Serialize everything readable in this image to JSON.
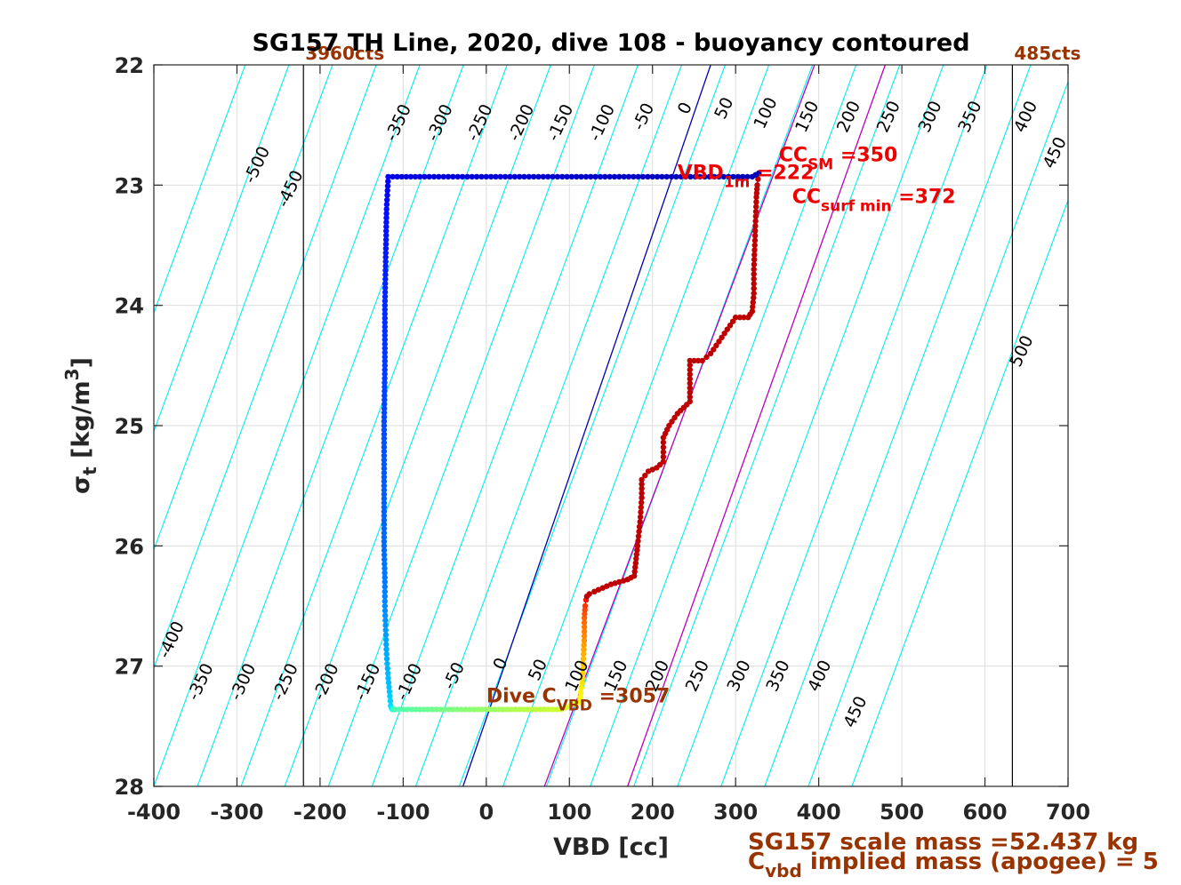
{
  "chart_data": {
    "type": "scatter",
    "title": "SG157 TH Line, 2020, dive 108 - buoyancy contoured",
    "xlabel": "VBD [cc]",
    "ylabel_main": "σ",
    "ylabel_sub": "t",
    "ylabel_unit": "[kg/m",
    "ylabel_sup": "3",
    "ylabel_close": "]",
    "xlim": [
      -400,
      700
    ],
    "ylim": [
      22,
      28
    ],
    "y_reversed": true,
    "grid": true,
    "xticks": [
      -400,
      -300,
      -200,
      -100,
      0,
      100,
      200,
      300,
      400,
      500,
      600,
      700
    ],
    "yticks": [
      22,
      23,
      24,
      25,
      26,
      27,
      28
    ],
    "buoyancy_contours": {
      "color": "#00eeee",
      "values": [
        -500,
        -450,
        -400,
        -350,
        -300,
        -250,
        -200,
        -150,
        -100,
        -50,
        0,
        50,
        100,
        150,
        200,
        250,
        300,
        350,
        400,
        450,
        500
      ],
      "top_labels": [
        {
          "text": "-500",
          "x": -270,
          "y": 22.85
        },
        {
          "text": "-450",
          "x": -230,
          "y": 23.05
        },
        {
          "text": "-350",
          "x": -100,
          "y": 22.5
        },
        {
          "text": "-300",
          "x": -50,
          "y": 22.5
        },
        {
          "text": "-250",
          "x": -2,
          "y": 22.5
        },
        {
          "text": "-200",
          "x": 48,
          "y": 22.5
        },
        {
          "text": "-150",
          "x": 95,
          "y": 22.5
        },
        {
          "text": "-100",
          "x": 145,
          "y": 22.5
        },
        {
          "text": "-50",
          "x": 195,
          "y": 22.45
        },
        {
          "text": "0",
          "x": 245,
          "y": 22.38
        },
        {
          "text": "50",
          "x": 292,
          "y": 22.38
        },
        {
          "text": "100",
          "x": 342,
          "y": 22.42
        },
        {
          "text": "150",
          "x": 392,
          "y": 22.45
        },
        {
          "text": "200",
          "x": 442,
          "y": 22.45
        },
        {
          "text": "250",
          "x": 490,
          "y": 22.45
        },
        {
          "text": "300",
          "x": 540,
          "y": 22.45
        },
        {
          "text": "350",
          "x": 588,
          "y": 22.45
        },
        {
          "text": "400",
          "x": 655,
          "y": 22.45
        },
        {
          "text": "450",
          "x": 690,
          "y": 22.75
        },
        {
          "text": "500",
          "x": 650,
          "y": 24.4
        }
      ],
      "bottom_labels": [
        {
          "text": "-400",
          "x": -373,
          "y": 26.8
        },
        {
          "text": "-350",
          "x": -338,
          "y": 27.15
        },
        {
          "text": "-300",
          "x": -287,
          "y": 27.15
        },
        {
          "text": "-250",
          "x": -236,
          "y": 27.15
        },
        {
          "text": "-200",
          "x": -187,
          "y": 27.15
        },
        {
          "text": "-150",
          "x": -137,
          "y": 27.15
        },
        {
          "text": "-100",
          "x": -87,
          "y": 27.15
        },
        {
          "text": "-50",
          "x": -33,
          "y": 27.1
        },
        {
          "text": "0",
          "x": 23,
          "y": 27.0
        },
        {
          "text": "50",
          "x": 68,
          "y": 27.05
        },
        {
          "text": "100",
          "x": 115,
          "y": 27.1
        },
        {
          "text": "150",
          "x": 162,
          "y": 27.1
        },
        {
          "text": "200",
          "x": 212,
          "y": 27.1
        },
        {
          "text": "250",
          "x": 260,
          "y": 27.1
        },
        {
          "text": "300",
          "x": 310,
          "y": 27.1
        },
        {
          "text": "350",
          "x": 357,
          "y": 27.1
        },
        {
          "text": "400",
          "x": 407,
          "y": 27.1
        },
        {
          "text": "450",
          "x": 450,
          "y": 27.4
        }
      ]
    },
    "vertical_lines": [
      {
        "x": -220,
        "label": "3960cts",
        "color": "#000000"
      },
      {
        "x": 633,
        "label": "485cts",
        "color": "#000000"
      }
    ],
    "reference_lines": [
      {
        "name": "",
        "color": "#0000aa",
        "x_top": 270,
        "x_bottom": -28
      },
      {
        "name": "",
        "color": "#bb00bb",
        "x_top": 395,
        "x_bottom": 70
      },
      {
        "name": "",
        "color": "#bb00bb",
        "x_top": 480,
        "x_bottom": 170
      }
    ],
    "series": [
      {
        "color_note": "jet colormap by time",
        "x": [
          -118,
          -120,
          -121,
          -122,
          -122,
          -123,
          -123,
          -123,
          -122,
          -122,
          -121,
          -120,
          -118,
          -116,
          -115,
          -114,
          -113,
          -112,
          -112,
          -111,
          -111,
          -110,
          -90,
          -60,
          -30,
          0,
          30,
          60,
          90,
          112,
          116,
          117,
          118,
          118,
          119,
          120,
          121,
          124,
          130,
          140,
          150,
          160,
          170,
          178,
          182,
          185,
          187,
          187,
          195,
          205,
          213,
          213,
          220,
          230,
          245,
          245,
          260,
          270,
          280,
          290,
          300,
          315,
          320,
          322,
          322,
          323,
          324,
          325,
          326,
          327,
          328,
          320,
          280,
          240,
          200,
          160,
          120,
          80,
          40,
          0,
          -40,
          -80,
          -118
        ],
        "y": [
          22.93,
          23.2,
          23.6,
          24.0,
          24.5,
          25.0,
          25.5,
          26.0,
          26.3,
          26.5,
          26.7,
          26.9,
          27.1,
          27.25,
          27.33,
          27.35,
          27.36,
          27.36,
          27.36,
          27.36,
          27.36,
          27.36,
          27.36,
          27.36,
          27.36,
          27.36,
          27.36,
          27.36,
          27.36,
          27.3,
          27.1,
          26.9,
          26.75,
          26.6,
          26.5,
          26.45,
          26.42,
          26.4,
          26.38,
          26.35,
          26.32,
          26.3,
          26.28,
          26.25,
          26.0,
          25.8,
          25.6,
          25.45,
          25.38,
          25.35,
          25.3,
          25.1,
          25.0,
          24.9,
          24.8,
          24.46,
          24.46,
          24.4,
          24.3,
          24.2,
          24.1,
          24.1,
          24.05,
          23.9,
          23.7,
          23.5,
          23.3,
          23.1,
          23.0,
          22.95,
          22.9,
          22.93,
          22.93,
          22.93,
          22.93,
          22.93,
          22.93,
          22.93,
          22.93,
          22.93,
          22.93,
          22.93,
          22.93
        ]
      }
    ],
    "annotations": [
      {
        "text": "VBD",
        "sub": "1m",
        "rest": " =222",
        "color": "#ee0000",
        "x": 230,
        "y": 22.95
      },
      {
        "text": "CC",
        "sub": "SM",
        "rest": " =350",
        "color": "#ee0000",
        "x": 352,
        "y": 22.8
      },
      {
        "text": "CC",
        "sub": "surf min",
        "rest": " =372",
        "color": "#ee0000",
        "x": 368,
        "y": 23.15
      },
      {
        "text": "Dive C",
        "sub": "VBD",
        "rest": " =3057",
        "color": "#993300",
        "x": 0,
        "y": 27.3
      }
    ],
    "footer": [
      {
        "text": "SG157 scale mass =52.437 kg"
      },
      {
        "main": "C",
        "sub": "vbd",
        "rest": " implied mass (apogee) = 5"
      }
    ]
  }
}
